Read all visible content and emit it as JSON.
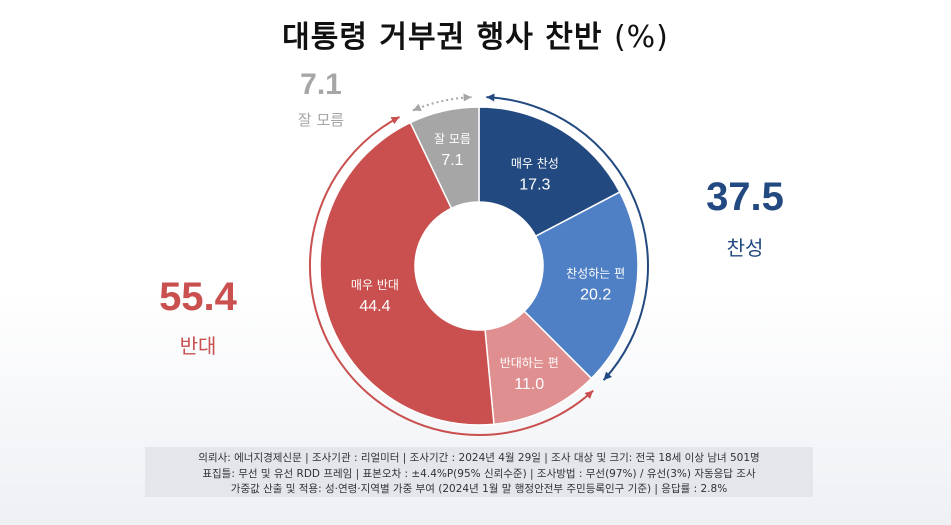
{
  "title": "대통령 거부권 행사 찬반",
  "title_unit": "(%)",
  "colors": {
    "strong_favor": "#234a80",
    "favor": "#4f7fc4",
    "oppose": "#df8f8f",
    "strong_oppose": "#c9504f",
    "unknown": "#a6a6a6",
    "favor_total": "#234a80",
    "oppose_total": "#c9504f",
    "unknown_total": "#a6a6a6"
  },
  "totals": {
    "favor": {
      "value": "37.5",
      "label": "찬성"
    },
    "oppose": {
      "value": "55.4",
      "label": "반대"
    },
    "unknown": {
      "value": "7.1",
      "label": "잘 모름"
    }
  },
  "chart_data": {
    "type": "pie",
    "title": "대통령 거부권 행사 찬반",
    "unit": "%",
    "style": "donut",
    "slices": [
      {
        "label": "매우 찬성",
        "value": 17.3
      },
      {
        "label": "찬성하는 편",
        "value": 20.2
      },
      {
        "label": "반대하는 편",
        "value": 11.0
      },
      {
        "label": "매우 반대",
        "value": 44.4
      },
      {
        "label": "잘 모름",
        "value": 7.1
      }
    ],
    "groups": [
      {
        "label": "찬성",
        "value": 37.5
      },
      {
        "label": "반대",
        "value": 55.4
      },
      {
        "label": "잘 모름",
        "value": 7.1
      }
    ]
  },
  "footer": {
    "line1": "의뢰사: 에너지경제신문 | 조사기관 : 리얼미터 | 조사기간 : 2024년 4월 29일 | 조사 대상 및 크기: 전국 18세 이상 남녀 501명",
    "line2": "표집틀: 무선 및 유선 RDD 프레임 | 표본오차 : ±4.4%P(95% 신뢰수준) | 조사방법 : 무선(97%) / 유선(3%) 자동응답 조사",
    "line3": "가중값 산출 및 적용: 성·연령·지역별 가중 부여 (2024년 1월 말 행정안전부 주민등록인구 기준) | 응답률 : 2.8%"
  }
}
